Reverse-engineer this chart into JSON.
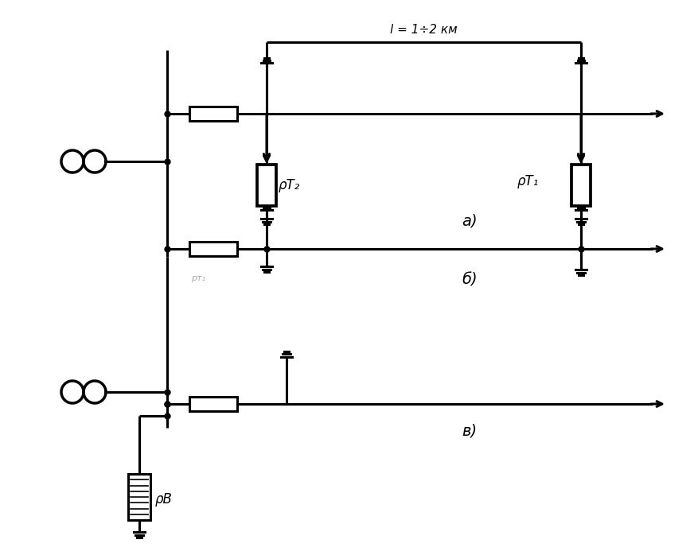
{
  "background_color": "#ffffff",
  "line_color": "#000000",
  "lw": 2.2,
  "lw_thin": 1.5,
  "fig_width": 8.77,
  "fig_height": 7.03,
  "label_a": "a)",
  "label_b": "б)",
  "label_v": "в)",
  "label_l": "l = 1÷2 км",
  "label_pt2": "ρT₂",
  "label_pt1": "ρT₁",
  "label_rb": "ρB"
}
